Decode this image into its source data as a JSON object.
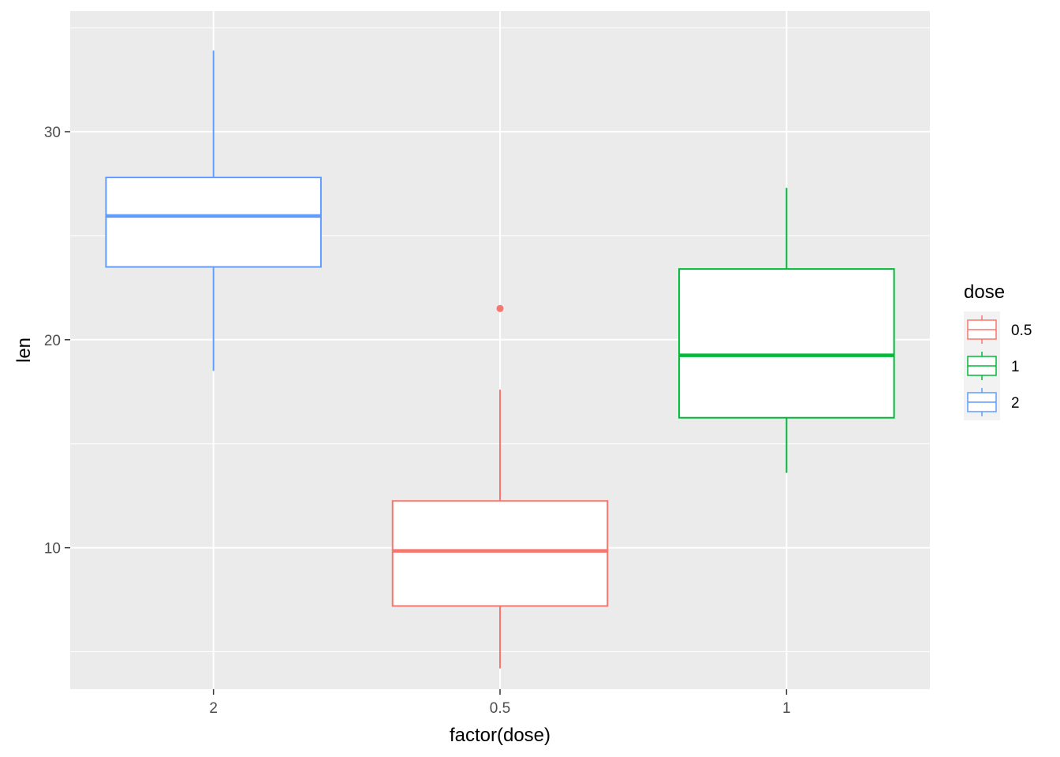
{
  "chart_data": {
    "type": "boxplot",
    "title": "",
    "xlabel": "factor(dose)",
    "ylabel": "len",
    "ylim": [
      3.2,
      35.8
    ],
    "y_ticks": [
      10,
      20,
      30
    ],
    "y_tick_labels": [
      "10",
      "20",
      "30"
    ],
    "categories": [
      "2",
      "0.5",
      "1"
    ],
    "grid": true,
    "background": "#EBEBEB",
    "boxes": [
      {
        "category": "2",
        "group": "2",
        "color": "#619CFF",
        "lower_whisker": 18.5,
        "q1": 23.5,
        "median": 25.95,
        "q3": 27.8,
        "upper_whisker": 33.9,
        "outliers": []
      },
      {
        "category": "0.5",
        "group": "0.5",
        "color": "#F8766D",
        "lower_whisker": 4.2,
        "q1": 7.2,
        "median": 9.85,
        "q3": 12.25,
        "upper_whisker": 17.6,
        "outliers": [
          21.5
        ]
      },
      {
        "category": "1",
        "group": "1",
        "color": "#00BA38",
        "lower_whisker": 13.6,
        "q1": 16.25,
        "median": 19.25,
        "q3": 23.4,
        "upper_whisker": 27.3,
        "outliers": []
      }
    ],
    "legend": {
      "title": "dose",
      "position": "right",
      "items": [
        {
          "label": "0.5",
          "color": "#F8766D"
        },
        {
          "label": "1",
          "color": "#00BA38"
        },
        {
          "label": "2",
          "color": "#619CFF"
        }
      ]
    }
  }
}
